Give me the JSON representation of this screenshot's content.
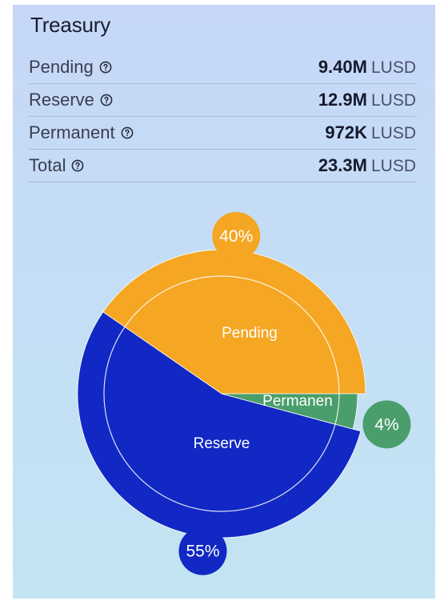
{
  "panel": {
    "title": "Treasury",
    "rows": [
      {
        "label": "Pending",
        "value": "9.40M",
        "unit": "LUSD"
      },
      {
        "label": "Reserve",
        "value": "12.9M",
        "unit": "LUSD"
      },
      {
        "label": "Permanent",
        "value": "972K",
        "unit": "LUSD"
      },
      {
        "label": "Total",
        "value": "23.3M",
        "unit": "LUSD"
      }
    ],
    "help_icon": "question-circle-icon"
  },
  "chart_data": {
    "type": "pie",
    "labels": [
      "Pending",
      "Reserve",
      "Permanent"
    ],
    "values": [
      9.4,
      12.9,
      0.972
    ],
    "percent_labels": [
      "40%",
      "55%",
      "4%"
    ],
    "segment_labels": [
      "Pending",
      "Reserve",
      "Permanen"
    ],
    "colors": [
      "#f5a623",
      "#1128c4",
      "#4a9e6b"
    ]
  }
}
